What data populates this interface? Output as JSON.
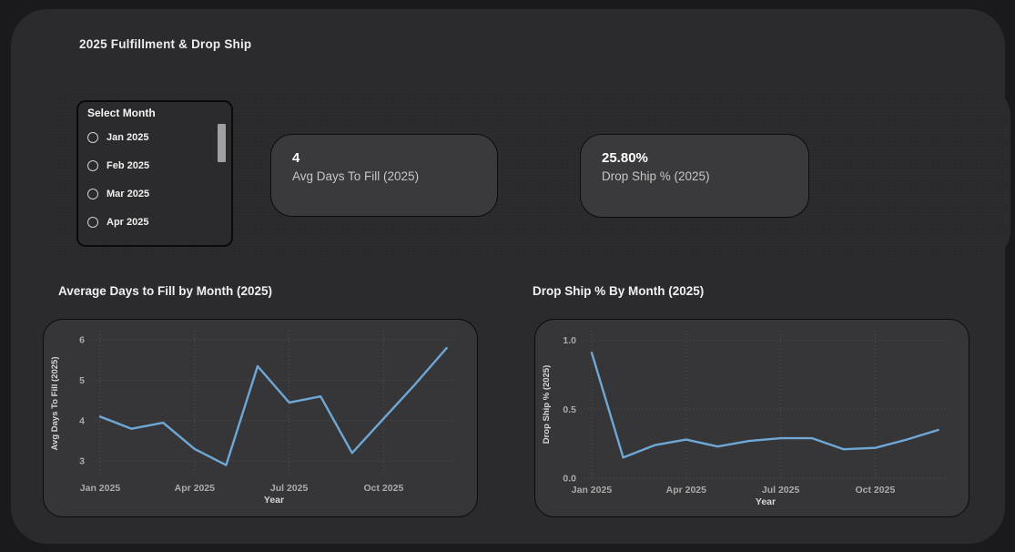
{
  "page": {
    "title": "2025 Fulfillment & Drop Ship"
  },
  "colors": {
    "background": "#1a1a1c",
    "container": "#2b2b2d",
    "card": "#3a3a3c",
    "line": "#6fa8d6",
    "grid": "#515154",
    "tick_text": "#ababab",
    "axis_text": "#d6d6d6"
  },
  "slicer": {
    "title": "Select Month",
    "options": [
      {
        "label": "Jan 2025",
        "selected": false
      },
      {
        "label": "Feb 2025",
        "selected": false
      },
      {
        "label": "Mar 2025",
        "selected": false
      },
      {
        "label": "Apr 2025",
        "selected": false
      }
    ]
  },
  "kpis": [
    {
      "value": "4",
      "label": "Avg Days To Fill (2025)"
    },
    {
      "value": "25.80%",
      "label": "Drop Ship % (2025)"
    }
  ],
  "chart_data": [
    {
      "type": "line",
      "title": "Average Days to Fill by Month (2025)",
      "x": [
        "Jan 2025",
        "Feb 2025",
        "Mar 2025",
        "Apr 2025",
        "May 2025",
        "Jun 2025",
        "Jul 2025",
        "Aug 2025",
        "Sep 2025",
        "Oct 2025",
        "Nov 2025",
        "Dec 2025"
      ],
      "values": [
        4.1,
        3.8,
        3.95,
        3.3,
        2.9,
        5.35,
        4.45,
        4.6,
        3.2,
        4.05,
        4.9,
        5.8
      ],
      "xlabel": "Year",
      "ylabel": "Avg Days To Fill (2025)",
      "yticks": [
        3,
        4,
        5,
        6
      ],
      "ytick_labels": [
        "3",
        "4",
        "5",
        "6"
      ],
      "ylim": [
        2.62,
        6.23
      ],
      "xtick_indices": [
        0,
        3,
        6,
        9
      ],
      "xtick_labels": [
        "Jan 2025",
        "Apr 2025",
        "Jul 2025",
        "Oct 2025"
      ],
      "xlim": [
        -0.26,
        11.3
      ],
      "grid": true,
      "legend": "none",
      "line_color": "#6fa8d6"
    },
    {
      "type": "line",
      "title": "Drop Ship % By Month (2025)",
      "x": [
        "Jan 2025",
        "Feb 2025",
        "Mar 2025",
        "Apr 2025",
        "May 2025",
        "Jun 2025",
        "Jul 2025",
        "Aug 2025",
        "Sep 2025",
        "Oct 2025",
        "Nov 2025",
        "Dec 2025"
      ],
      "values": [
        0.91,
        0.15,
        0.24,
        0.28,
        0.23,
        0.27,
        0.29,
        0.29,
        0.21,
        0.22,
        0.28,
        0.35
      ],
      "xlabel": "Year",
      "ylabel": "Drop Ship % (2025)",
      "yticks": [
        0,
        0.5,
        1.0
      ],
      "ytick_labels": [
        "0.0",
        "0.5",
        "1.0"
      ],
      "ylim": [
        0,
        1.07
      ],
      "xtick_indices": [
        0,
        3,
        6,
        9
      ],
      "xtick_labels": [
        "Jan 2025",
        "Apr 2025",
        "Jul 2025",
        "Oct 2025"
      ],
      "xlim": [
        -0.26,
        11.3
      ],
      "grid": true,
      "legend": "none",
      "line_color": "#6fa8d6"
    }
  ]
}
